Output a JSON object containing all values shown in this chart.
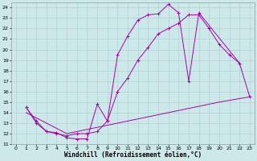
{
  "xlabel": "Windchill (Refroidissement éolien,°C)",
  "xlim": [
    -0.5,
    23.5
  ],
  "ylim": [
    11,
    24.5
  ],
  "xticks": [
    0,
    1,
    2,
    3,
    4,
    5,
    6,
    7,
    8,
    9,
    10,
    11,
    12,
    13,
    14,
    15,
    16,
    17,
    18,
    19,
    20,
    21,
    22,
    23
  ],
  "yticks": [
    11,
    12,
    13,
    14,
    15,
    16,
    17,
    18,
    19,
    20,
    21,
    22,
    23,
    24
  ],
  "bg_color": "#cce8e8",
  "line_color": "#aa00aa",
  "grid_color": "#aacccc",
  "line1_x": [
    1,
    2,
    3,
    4,
    5,
    6,
    7,
    8,
    9,
    10,
    11,
    12,
    13,
    14,
    15,
    16,
    17,
    18,
    22
  ],
  "line1_y": [
    14.5,
    13.0,
    12.2,
    12.1,
    11.6,
    11.5,
    11.5,
    14.8,
    13.2,
    19.5,
    21.3,
    22.8,
    23.3,
    23.4,
    24.3,
    23.5,
    17.0,
    23.5,
    18.7
  ],
  "line2_x": [
    1,
    2,
    3,
    4,
    5,
    6,
    7,
    8,
    9,
    10,
    11,
    12,
    13,
    14,
    15,
    16,
    17,
    18,
    19,
    20,
    21,
    22,
    23
  ],
  "line2_y": [
    14.5,
    13.2,
    12.2,
    12.0,
    11.8,
    12.0,
    12.0,
    12.2,
    13.2,
    16.0,
    17.3,
    19.0,
    20.2,
    21.5,
    22.0,
    22.5,
    23.3,
    23.3,
    22.0,
    20.5,
    19.5,
    18.7,
    15.5
  ],
  "line3_x": [
    1,
    5,
    10,
    15,
    20,
    23
  ],
  "line3_y": [
    14.0,
    12.0,
    13.0,
    14.0,
    15.0,
    15.5
  ],
  "tick_fontsize": 4.5,
  "xlabel_fontsize": 5.5,
  "linewidth": 0.7,
  "markersize": 2.5
}
